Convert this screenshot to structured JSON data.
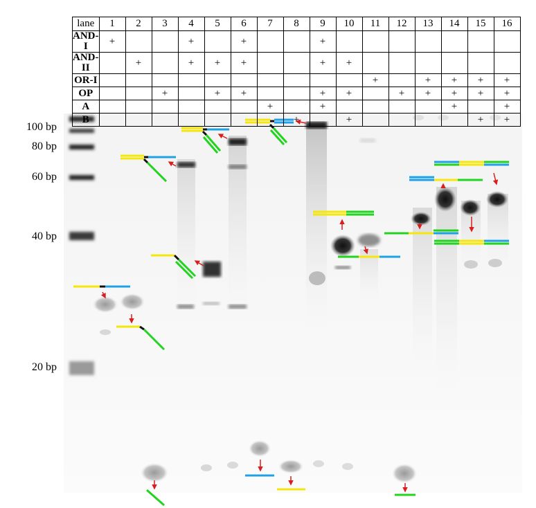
{
  "table": {
    "header_label": "lane",
    "lanes": [
      "1",
      "2",
      "3",
      "4",
      "5",
      "6",
      "7",
      "8",
      "9",
      "10",
      "11",
      "12",
      "13",
      "14",
      "15",
      "16"
    ],
    "rows": [
      {
        "label": "AND-I",
        "cells": [
          "+",
          "",
          "",
          "+",
          "",
          "+",
          "",
          "",
          "+",
          "",
          "",
          "",
          "",
          "",
          "",
          ""
        ]
      },
      {
        "label": "AND-II",
        "cells": [
          "",
          "+",
          "",
          "+",
          "+",
          "+",
          "",
          "",
          "+",
          "+",
          "",
          "",
          "",
          "",
          "",
          ""
        ]
      },
      {
        "label": "OR-I",
        "cells": [
          "",
          "",
          "",
          "",
          "",
          "",
          "",
          "",
          "",
          "",
          "+",
          "",
          "+",
          "+",
          "+",
          "+"
        ]
      },
      {
        "label": "OP",
        "cells": [
          "",
          "",
          "+",
          "",
          "+",
          "+",
          "",
          "",
          "+",
          "+",
          "",
          "+",
          "+",
          "+",
          "+",
          "+"
        ]
      },
      {
        "label": "A",
        "cells": [
          "",
          "",
          "",
          "",
          "",
          "",
          "+",
          "",
          "+",
          "",
          "",
          "",
          "",
          "+",
          "",
          "+"
        ]
      },
      {
        "label": "B",
        "cells": [
          "",
          "",
          "",
          "",
          "",
          "",
          "",
          "+",
          "",
          "+",
          "",
          "",
          "",
          "",
          "+",
          "+"
        ]
      }
    ]
  },
  "markers": [
    "100 bp",
    "80 bp",
    "60 bp",
    "40 bp",
    "20 bp"
  ],
  "colors": {
    "strand_yellow": "#f5e60c",
    "strand_blue": "#1fa1e6",
    "strand_green": "#22d41f",
    "linker_black": "#111111",
    "arrow_red": "#d81e1e"
  }
}
